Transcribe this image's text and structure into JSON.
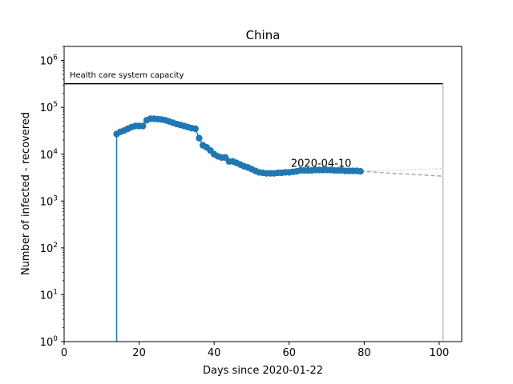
{
  "chart_data": {
    "type": "line",
    "title": "China",
    "xlabel": "Days since 2020-01-22",
    "ylabel": "Number of infected - recovered",
    "xlim": [
      0,
      106
    ],
    "ylim": [
      1,
      2000000
    ],
    "yscale": "log",
    "x_ticks": [
      0,
      20,
      40,
      60,
      80,
      100
    ],
    "y_ticks": [
      {
        "value": 1,
        "base": "10",
        "exp": "0"
      },
      {
        "value": 10,
        "base": "10",
        "exp": "1"
      },
      {
        "value": 100,
        "base": "10",
        "exp": "2"
      },
      {
        "value": 1000,
        "base": "10",
        "exp": "3"
      },
      {
        "value": 10000,
        "base": "10",
        "exp": "4"
      },
      {
        "value": 100000,
        "base": "10",
        "exp": "5"
      },
      {
        "value": 1000000,
        "base": "10",
        "exp": "6"
      }
    ],
    "grid": false,
    "capacity": {
      "label": "Health care system capacity",
      "value": 320000,
      "x_start": 0,
      "x_end": 101
    },
    "annotation": {
      "text": "2020-04-10",
      "x": 79,
      "y": 4400
    },
    "series": [
      {
        "color": "#1f77b4",
        "style": "line-marker",
        "x": [
          14,
          15,
          16,
          17,
          18,
          19,
          20,
          21,
          22,
          23,
          24,
          25,
          26,
          27,
          28,
          29,
          30,
          31,
          32,
          33,
          34,
          35,
          36,
          37,
          38,
          39,
          40,
          41,
          42,
          43,
          44,
          45,
          46,
          47,
          48,
          49,
          50,
          51,
          52,
          53,
          54,
          55,
          56,
          57,
          58,
          59,
          60,
          61,
          62,
          63,
          64,
          65,
          66,
          67,
          68,
          69,
          70,
          71,
          72,
          73,
          74,
          75,
          76,
          77,
          78,
          79
        ],
        "y": [
          27000,
          30000,
          32000,
          35000,
          38000,
          40000,
          40000,
          40000,
          53000,
          57000,
          57000,
          56000,
          55000,
          53000,
          50000,
          47000,
          44000,
          42000,
          40000,
          38000,
          36000,
          35000,
          22000,
          15500,
          14000,
          12000,
          10000,
          9000,
          8500,
          8500,
          7000,
          7000,
          6500,
          6000,
          5500,
          5200,
          4800,
          4400,
          4100,
          4000,
          3900,
          3900,
          3900,
          4000,
          4000,
          4100,
          4100,
          4200,
          4300,
          4500,
          4500,
          4500,
          4500,
          4600,
          4600,
          4600,
          4600,
          4600,
          4500,
          4500,
          4500,
          4400,
          4400,
          4400,
          4400,
          4300
        ]
      }
    ],
    "drop_line": {
      "x": 14,
      "y_top": 27000,
      "color": "#1f77b4"
    },
    "projections": [
      {
        "style": "dotted",
        "color": "#c8c8c8",
        "x": [
          79,
          101
        ],
        "y": [
          4300,
          4900
        ]
      },
      {
        "style": "dashed",
        "color": "#aaaaaa",
        "x": [
          79,
          101
        ],
        "y": [
          4300,
          3400
        ]
      }
    ],
    "end_marker": {
      "x": 101,
      "color": "#bbbbbb"
    }
  }
}
